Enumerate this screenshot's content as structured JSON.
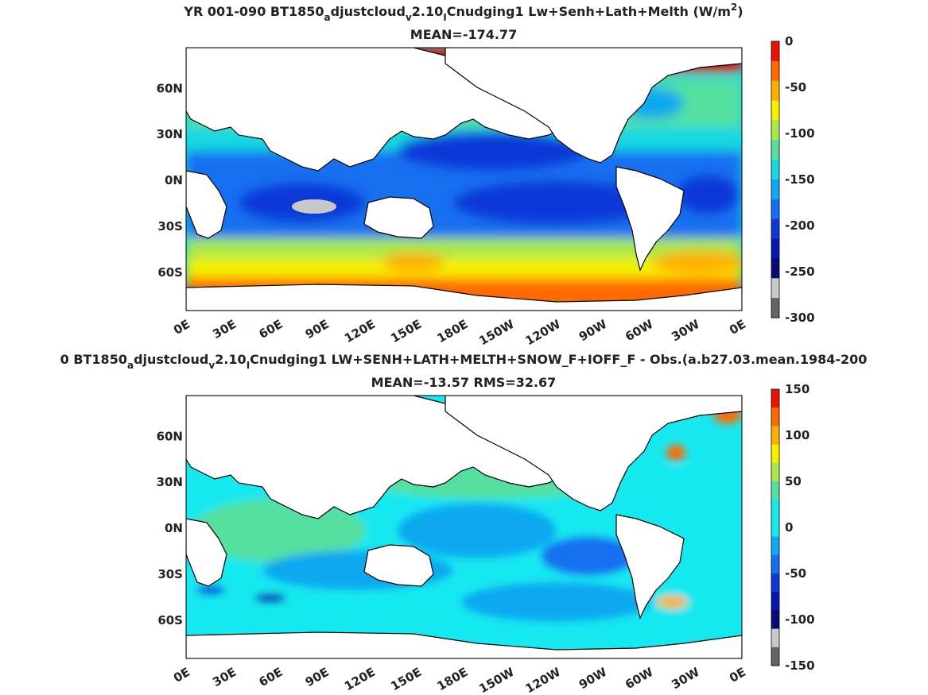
{
  "chart_data": [
    {
      "type": "heatmap",
      "title_parts": [
        "YR 001-090 BT1850",
        "a",
        "djustcloud",
        "v",
        "2.10",
        "I",
        "Cnudging1 Lw+Senh+Lath+Melth (W/m",
        "2",
        ")"
      ],
      "subtitle": "MEAN=-174.77",
      "x_ticks": [
        "0E",
        "30E",
        "60E",
        "90E",
        "120E",
        "150E",
        "180E",
        "150W",
        "120W",
        "90W",
        "60W",
        "30W",
        "0E"
      ],
      "y_ticks": [
        "60N",
        "30N",
        "0N",
        "30S",
        "60S"
      ],
      "colorbar_ticks": [
        "0",
        "-50",
        "-100",
        "-150",
        "-200",
        "-250",
        "-300"
      ],
      "colorbar_range": [
        -300,
        0
      ],
      "colorbar_colors": [
        "#ee1100",
        "#ff6a00",
        "#ffb000",
        "#f5f000",
        "#a8e84a",
        "#55e0a0",
        "#18d8e0",
        "#10a8f0",
        "#1470f0",
        "#0e38d8",
        "#0a14b0",
        "#080a78",
        "#c8c8c8",
        "#646464"
      ],
      "mean": -174.77
    },
    {
      "type": "heatmap",
      "title_parts": [
        "0 BT1850",
        "a",
        "djustcloud",
        "v",
        "2.10",
        "I",
        "Cnudging1 LW+SENH+LATH+MELTH+SNOW_F+IOFF_F - Obs.(a.b27.03.mean.1984-200"
      ],
      "subtitle": "MEAN=-13.57 RMS=32.67",
      "x_ticks": [
        "0E",
        "30E",
        "60E",
        "90E",
        "120E",
        "150E",
        "180E",
        "150W",
        "120W",
        "90W",
        "60W",
        "30W",
        "0E"
      ],
      "y_ticks": [
        "60N",
        "30N",
        "0N",
        "30S",
        "60S"
      ],
      "colorbar_ticks": [
        "150",
        "100",
        "50",
        "0",
        "-50",
        "-100",
        "-150"
      ],
      "colorbar_range": [
        -150,
        150
      ],
      "colorbar_colors": [
        "#ee1100",
        "#ff6a00",
        "#ffb000",
        "#f5f000",
        "#a8e84a",
        "#55e0a0",
        "#18e8f0",
        "#18e8f0",
        "#10a8f0",
        "#1470f0",
        "#0e38d8",
        "#0a14b0",
        "#080a78",
        "#c8c8c8",
        "#646464"
      ],
      "mean": -13.57,
      "rms": 32.67
    }
  ]
}
